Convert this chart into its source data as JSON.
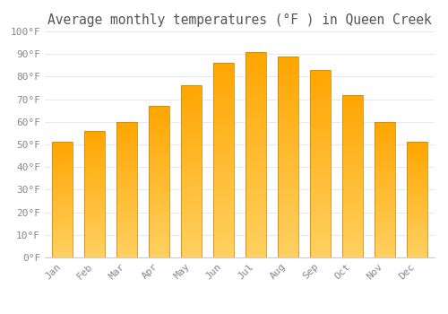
{
  "title": "Average monthly temperatures (°F ) in Queen Creek",
  "months": [
    "Jan",
    "Feb",
    "Mar",
    "Apr",
    "May",
    "Jun",
    "Jul",
    "Aug",
    "Sep",
    "Oct",
    "Nov",
    "Dec"
  ],
  "values": [
    51,
    56,
    60,
    67,
    76,
    86,
    91,
    89,
    83,
    72,
    60,
    51
  ],
  "bar_color_bottom": "#FFD060",
  "bar_color_top": "#FFA500",
  "bar_edge_color": "#CC8800",
  "ylim": [
    0,
    100
  ],
  "ytick_step": 10,
  "background_color": "#FFFFFF",
  "grid_color": "#E8E8F0",
  "title_fontsize": 10.5,
  "tick_fontsize": 8,
  "tick_color": "#888888",
  "font_family": "monospace"
}
